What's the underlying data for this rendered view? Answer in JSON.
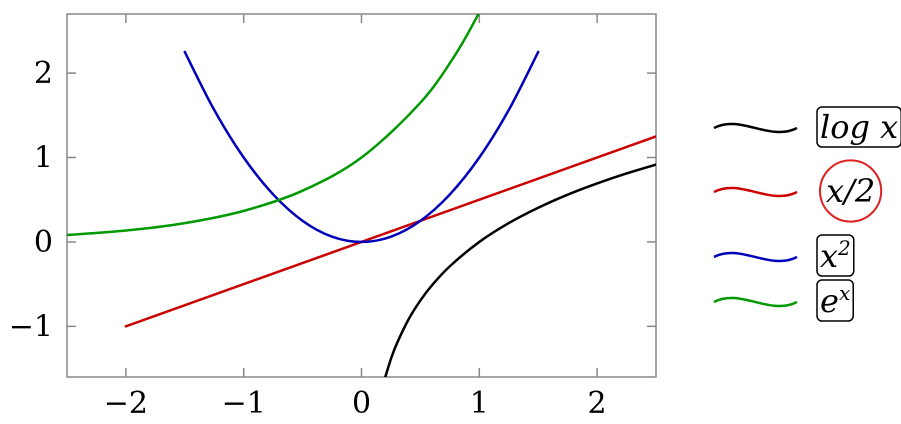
{
  "chart_data": {
    "type": "line",
    "title": "",
    "xlabel": "",
    "ylabel": "",
    "xlim": [
      -2.5,
      2.5
    ],
    "ylim": [
      -1.6,
      2.7
    ],
    "xticks": [
      -2,
      -1,
      0,
      1,
      2
    ],
    "yticks": [
      -1,
      0,
      1,
      2
    ],
    "x_tick_labels": [
      "−2",
      "−1",
      "0",
      "1",
      "2"
    ],
    "y_tick_labels": [
      "−1",
      "0",
      "1",
      "2"
    ],
    "grid": false,
    "legend_position": "right, outside",
    "series": [
      {
        "name": "log x",
        "name_base": "log x",
        "color": "#000000",
        "x": [
          0.2,
          0.25,
          0.3,
          0.4,
          0.5,
          0.6,
          0.75,
          1.0,
          1.25,
          1.5,
          1.75,
          2.0,
          2.25,
          2.5
        ],
        "y": [
          -1.609,
          -1.386,
          -1.204,
          -0.916,
          -0.693,
          -0.511,
          -0.288,
          0.0,
          0.223,
          0.405,
          0.56,
          0.693,
          0.811,
          0.916
        ]
      },
      {
        "name": "x/2",
        "name_base": "x/2",
        "color": "#cc0000",
        "x": [
          -2,
          2.5
        ],
        "y": [
          -1,
          1.25
        ]
      },
      {
        "name": "x^2",
        "name_base": "x",
        "name_sup": "2",
        "color": "#0000bb",
        "x": [
          -1.5,
          -1.25,
          -1.0,
          -0.75,
          -0.5,
          -0.25,
          0.0,
          0.25,
          0.5,
          0.75,
          1.0,
          1.25,
          1.5
        ],
        "y": [
          2.25,
          1.5625,
          1.0,
          0.5625,
          0.25,
          0.0625,
          0.0,
          0.0625,
          0.25,
          0.5625,
          1.0,
          1.5625,
          2.25
        ]
      },
      {
        "name": "e^x",
        "name_base": "e",
        "name_sup": "x",
        "color": "#009900",
        "x": [
          -2.5,
          -2.0,
          -1.5,
          -1.0,
          -0.5,
          0.0,
          0.5,
          0.8,
          1.0
        ],
        "y": [
          0.082,
          0.135,
          0.223,
          0.368,
          0.607,
          1.0,
          1.649,
          2.226,
          2.718
        ]
      }
    ]
  }
}
